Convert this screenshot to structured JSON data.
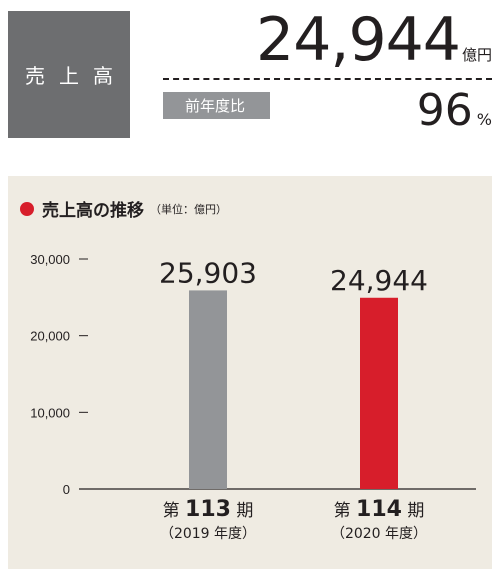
{
  "summary": {
    "label": "売上高",
    "total_value": "24,944",
    "total_unit": "億円",
    "prev_label": "前年度比",
    "ratio_value": "96",
    "ratio_unit": "%"
  },
  "colors": {
    "label_bg": "#6d6e70",
    "badge_bg": "#939598",
    "panel_bg": "#efebe2",
    "accent_red": "#d71e2b",
    "bar_gray": "#939598"
  },
  "chart_data": {
    "type": "bar",
    "title": "売上高の推移",
    "unit_note": "（単位：億円）",
    "ylim": [
      0,
      30000
    ],
    "yticks": [
      {
        "value": 0,
        "label": "0"
      },
      {
        "value": 10000,
        "label": "10,000"
      },
      {
        "value": 20000,
        "label": "20,000"
      },
      {
        "value": 30000,
        "label": "30,000"
      }
    ],
    "categories": [
      {
        "prefix": "第",
        "number": "113",
        "suffix": "期",
        "sub": "（2019 年度）",
        "value": 25903,
        "value_label": "25,903",
        "color": "#939598"
      },
      {
        "prefix": "第",
        "number": "114",
        "suffix": "期",
        "sub": "（2020 年度）",
        "value": 24944,
        "value_label": "24,944",
        "color": "#d71e2b"
      }
    ],
    "grid": false
  }
}
